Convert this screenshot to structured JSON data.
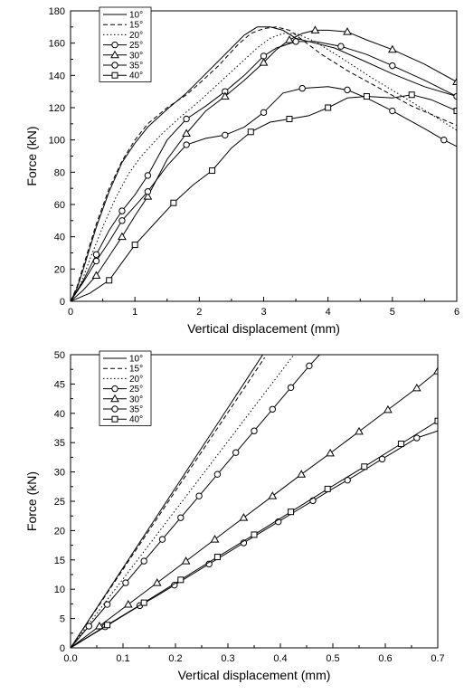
{
  "chart_data": [
    {
      "type": "line",
      "xlabel": "Vertical displacement (mm)",
      "ylabel": "Force (kN)",
      "xlim": [
        0,
        6
      ],
      "ylim": [
        0,
        180
      ],
      "xticks": [
        0,
        1,
        2,
        3,
        4,
        5,
        6
      ],
      "yticks": [
        0,
        20,
        40,
        60,
        80,
        100,
        120,
        140,
        160,
        180
      ],
      "grid": false,
      "legend_position": "top-left",
      "series": [
        {
          "name": "10°",
          "line_style": "solid",
          "marker": "none",
          "x": [
            0,
            0.1,
            0.2,
            0.3,
            0.4,
            0.6,
            0.8,
            1.0,
            1.2,
            1.5,
            1.8,
            2.0,
            2.2,
            2.5,
            2.7,
            2.9,
            3.1,
            3.3,
            3.5,
            3.8,
            4.1,
            4.5,
            5.0,
            5.5,
            6.0
          ],
          "y": [
            0,
            8,
            20,
            33,
            46,
            68,
            86,
            98,
            108,
            119,
            129,
            137,
            145,
            157,
            165,
            170,
            170,
            168,
            163,
            160,
            157,
            150,
            141,
            133,
            127
          ]
        },
        {
          "name": "15°",
          "line_style": "dashed",
          "marker": "none",
          "x": [
            0,
            0.1,
            0.2,
            0.4,
            0.6,
            0.8,
            1.0,
            1.2,
            1.5,
            1.8,
            2.0,
            2.3,
            2.6,
            2.8,
            3.0,
            3.2,
            3.4,
            3.6,
            3.9,
            4.3,
            4.8,
            5.3,
            6.0
          ],
          "y": [
            0,
            9,
            22,
            48,
            70,
            87,
            100,
            110,
            120,
            128,
            135,
            146,
            159,
            166,
            169,
            170,
            168,
            162,
            153,
            143,
            132,
            121,
            109
          ]
        },
        {
          "name": "20°",
          "line_style": "dotted",
          "marker": "none",
          "x": [
            0,
            0.1,
            0.2,
            0.3,
            0.5,
            0.7,
            0.9,
            1.1,
            1.4,
            1.7,
            2.0,
            2.3,
            2.6,
            2.9,
            3.1,
            3.3,
            3.5,
            3.8,
            4.2,
            4.7,
            5.2,
            6.0
          ],
          "y": [
            0,
            6,
            15,
            26,
            46,
            64,
            79,
            90,
            103,
            114,
            124,
            135,
            146,
            157,
            163,
            166,
            166,
            161,
            151,
            138,
            126,
            106
          ]
        },
        {
          "name": "25°",
          "line_style": "solid",
          "marker": "circle",
          "x": [
            0,
            0.2,
            0.4,
            0.6,
            0.8,
            1.0,
            1.2,
            1.5,
            1.8,
            2.1,
            2.4,
            2.7,
            3.0,
            3.2,
            3.5,
            3.8,
            4.2,
            4.6,
            5.0,
            5.5,
            6.0
          ],
          "y": [
            0,
            13,
            29,
            44,
            56,
            66,
            78,
            100,
            113,
            121,
            130,
            140,
            152,
            157,
            161,
            161,
            158,
            153,
            146,
            137,
            127
          ],
          "marker_every": 2
        },
        {
          "name": "30°",
          "line_style": "solid",
          "marker": "triangle",
          "x": [
            0,
            0.2,
            0.4,
            0.6,
            0.8,
            1.0,
            1.2,
            1.5,
            1.8,
            2.1,
            2.4,
            2.7,
            3.0,
            3.2,
            3.4,
            3.6,
            3.8,
            4.0,
            4.3,
            4.6,
            5.0,
            5.5,
            6.0
          ],
          "y": [
            0,
            7,
            16,
            28,
            40,
            53,
            65,
            88,
            104,
            118,
            127,
            137,
            148,
            156,
            162,
            166,
            168,
            168,
            167,
            162,
            156,
            147,
            136
          ],
          "marker_every": 2
        },
        {
          "name": "35°",
          "line_style": "solid",
          "marker": "circle",
          "x": [
            0,
            0.2,
            0.4,
            0.6,
            0.8,
            1.0,
            1.2,
            1.5,
            1.8,
            2.1,
            2.4,
            2.7,
            3.0,
            3.3,
            3.6,
            4.0,
            4.3,
            4.6,
            5.0,
            5.5,
            5.8,
            6.0
          ],
          "y": [
            0,
            12,
            25,
            37,
            50,
            59,
            68,
            84,
            97,
            101,
            103,
            108,
            117,
            129,
            132,
            133,
            131,
            126,
            118,
            107,
            100,
            96
          ],
          "marker_every": 2
        },
        {
          "name": "40°",
          "line_style": "solid",
          "marker": "square",
          "x": [
            0,
            0.3,
            0.6,
            0.8,
            1.0,
            1.3,
            1.6,
            1.9,
            2.2,
            2.5,
            2.8,
            3.1,
            3.4,
            3.7,
            4.0,
            4.3,
            4.6,
            5.0,
            5.3,
            5.6,
            6.0
          ],
          "y": [
            0,
            5,
            13,
            24,
            35,
            48,
            61,
            72,
            81,
            95,
            105,
            111,
            113,
            115,
            120,
            126,
            127,
            126,
            128,
            125,
            118
          ],
          "marker_every": 2
        }
      ]
    },
    {
      "type": "line",
      "xlabel": "Vertical displacement (mm)",
      "ylabel": "Force (kN)",
      "xlim": [
        0,
        0.7
      ],
      "ylim": [
        0,
        50
      ],
      "xticks": [
        0.0,
        0.1,
        0.2,
        0.3,
        0.4,
        0.5,
        0.6,
        0.7
      ],
      "yticks": [
        0,
        5,
        10,
        15,
        20,
        25,
        30,
        35,
        40,
        45,
        50
      ],
      "grid": false,
      "legend_position": "top-left",
      "series": [
        {
          "name": "10°",
          "line_style": "solid",
          "marker": "none",
          "x": [
            0,
            0.37
          ],
          "y": [
            0,
            50.5
          ]
        },
        {
          "name": "15°",
          "line_style": "dashed",
          "marker": "none",
          "x": [
            0,
            0.37
          ],
          "y": [
            0,
            49.5
          ]
        },
        {
          "name": "20°",
          "line_style": "dotted",
          "marker": "none",
          "x": [
            0,
            0.43
          ],
          "y": [
            0,
            50.5
          ]
        },
        {
          "name": "25°",
          "line_style": "solid",
          "marker": "circle",
          "x": [
            0,
            0.035,
            0.07,
            0.105,
            0.14,
            0.175,
            0.21,
            0.245,
            0.28,
            0.315,
            0.35,
            0.385,
            0.42,
            0.455,
            0.48
          ],
          "y": [
            0,
            3.7,
            7.4,
            11.1,
            14.8,
            18.5,
            22.2,
            25.9,
            29.6,
            33.3,
            37.0,
            40.7,
            44.4,
            48.1,
            50.5
          ]
        },
        {
          "name": "30°",
          "line_style": "solid",
          "marker": "triangle",
          "x": [
            0,
            0.055,
            0.11,
            0.165,
            0.22,
            0.275,
            0.33,
            0.385,
            0.44,
            0.495,
            0.55,
            0.605,
            0.66,
            0.7
          ],
          "y": [
            0,
            3.7,
            7.4,
            11.1,
            14.8,
            18.5,
            22.2,
            25.9,
            29.6,
            33.2,
            36.9,
            40.6,
            44.3,
            47.2
          ]
        },
        {
          "name": "35°",
          "line_style": "solid",
          "marker": "circle",
          "x": [
            0,
            0.033,
            0.066,
            0.099,
            0.132,
            0.165,
            0.198,
            0.231,
            0.264,
            0.297,
            0.33,
            0.363,
            0.396,
            0.429,
            0.462,
            0.495,
            0.528,
            0.561,
            0.594,
            0.627,
            0.66,
            0.7
          ],
          "y": [
            0,
            1.8,
            3.6,
            5.4,
            7.2,
            8.9,
            10.7,
            12.5,
            14.3,
            16.1,
            17.9,
            19.7,
            21.5,
            23.3,
            25.1,
            26.9,
            28.6,
            30.4,
            32.2,
            34.0,
            35.8,
            37.0
          ],
          "marker_every": 2
        },
        {
          "name": "40°",
          "line_style": "solid",
          "marker": "square",
          "x": [
            0,
            0.07,
            0.14,
            0.21,
            0.28,
            0.35,
            0.42,
            0.49,
            0.56,
            0.63,
            0.7
          ],
          "y": [
            0,
            3.9,
            7.7,
            11.6,
            15.5,
            19.3,
            23.2,
            27.1,
            30.9,
            34.8,
            38.7
          ],
          "marker_every": 1
        }
      ]
    }
  ]
}
